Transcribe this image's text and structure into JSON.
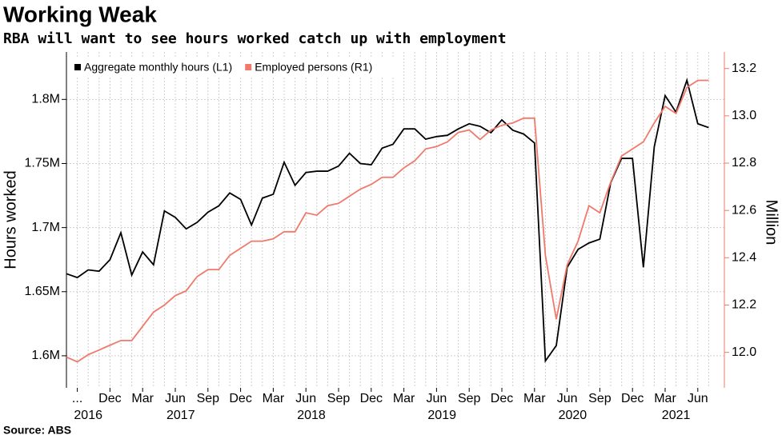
{
  "chart_data": {
    "type": "line",
    "title": "Working Weak",
    "subtitle": "RBA will want to see hours worked catch up with employment",
    "source": "Source: ABS",
    "y_label": "Hours worked",
    "y2_label": "Million",
    "categories": [
      null,
      "...",
      null,
      null,
      "Dec",
      null,
      null,
      "Mar",
      null,
      null,
      "Jun",
      null,
      null,
      "Sep",
      null,
      null,
      "Dec",
      null,
      null,
      "Mar",
      null,
      null,
      "Jun",
      null,
      null,
      "Sep",
      null,
      null,
      "Dec",
      null,
      null,
      "Mar",
      null,
      null,
      "Jun",
      null,
      null,
      "Sep",
      null,
      null,
      "Dec",
      null,
      null,
      "Mar",
      null,
      null,
      "Jun",
      null,
      null,
      "Sep",
      null,
      null,
      "Dec",
      null,
      null,
      "Mar",
      null,
      null,
      "Jun",
      null
    ],
    "years": [
      "2016",
      "2017",
      "2018",
      "2019",
      "2020",
      "2021"
    ],
    "series": [
      {
        "name": "Aggregate monthly hours (L1)",
        "color": "#000000",
        "axis": "y",
        "values": [
          1.664,
          1.661,
          1.667,
          1.666,
          1.675,
          1.696,
          1.663,
          1.681,
          1.671,
          1.713,
          1.708,
          1.699,
          1.704,
          1.712,
          1.717,
          1.727,
          1.722,
          1.702,
          1.723,
          1.726,
          1.751,
          1.733,
          1.743,
          1.744,
          1.744,
          1.748,
          1.758,
          1.75,
          1.749,
          1.762,
          1.765,
          1.777,
          1.777,
          1.769,
          1.771,
          1.772,
          1.777,
          1.781,
          1.779,
          1.774,
          1.784,
          1.776,
          1.773,
          1.766,
          1.596,
          1.608,
          1.669,
          1.683,
          1.688,
          1.691,
          1.735,
          1.754,
          1.754,
          1.669,
          1.763,
          1.803,
          1.79,
          1.815,
          1.781,
          1.778
        ]
      },
      {
        "name": "Employed persons (R1)",
        "color": "#f0796c",
        "axis": "y2",
        "values": [
          11.98,
          11.96,
          11.99,
          12.01,
          12.03,
          12.05,
          12.05,
          12.11,
          12.17,
          12.2,
          12.24,
          12.26,
          12.32,
          12.35,
          12.35,
          12.41,
          12.44,
          12.47,
          12.47,
          12.48,
          12.51,
          12.51,
          12.59,
          12.58,
          12.62,
          12.63,
          12.66,
          12.69,
          12.71,
          12.74,
          12.74,
          12.78,
          12.81,
          12.86,
          12.87,
          12.89,
          12.93,
          12.94,
          12.9,
          12.94,
          12.96,
          12.97,
          12.99,
          12.99,
          12.41,
          12.14,
          12.37,
          12.47,
          12.62,
          12.59,
          12.72,
          12.83,
          12.86,
          12.89,
          12.97,
          13.04,
          13.01,
          13.12,
          13.15,
          13.15
        ]
      }
    ],
    "ylim": [
      1.575,
      1.837
    ],
    "yticks": [
      {
        "value": 1.6,
        "label": "1.6M"
      },
      {
        "value": 1.65,
        "label": "1.65M"
      },
      {
        "value": 1.7,
        "label": "1.7M"
      },
      {
        "value": 1.75,
        "label": "1.75M"
      },
      {
        "value": 1.8,
        "label": "1.8M"
      }
    ],
    "y2lim": [
      11.85,
      13.27
    ],
    "y2ticks": [
      {
        "value": 12,
        "label": "12.0"
      },
      12.2,
      12.4,
      12.6,
      12.8,
      {
        "value": 13,
        "label": "13.0"
      },
      13.2
    ],
    "grid": true,
    "legend": "top-left"
  }
}
